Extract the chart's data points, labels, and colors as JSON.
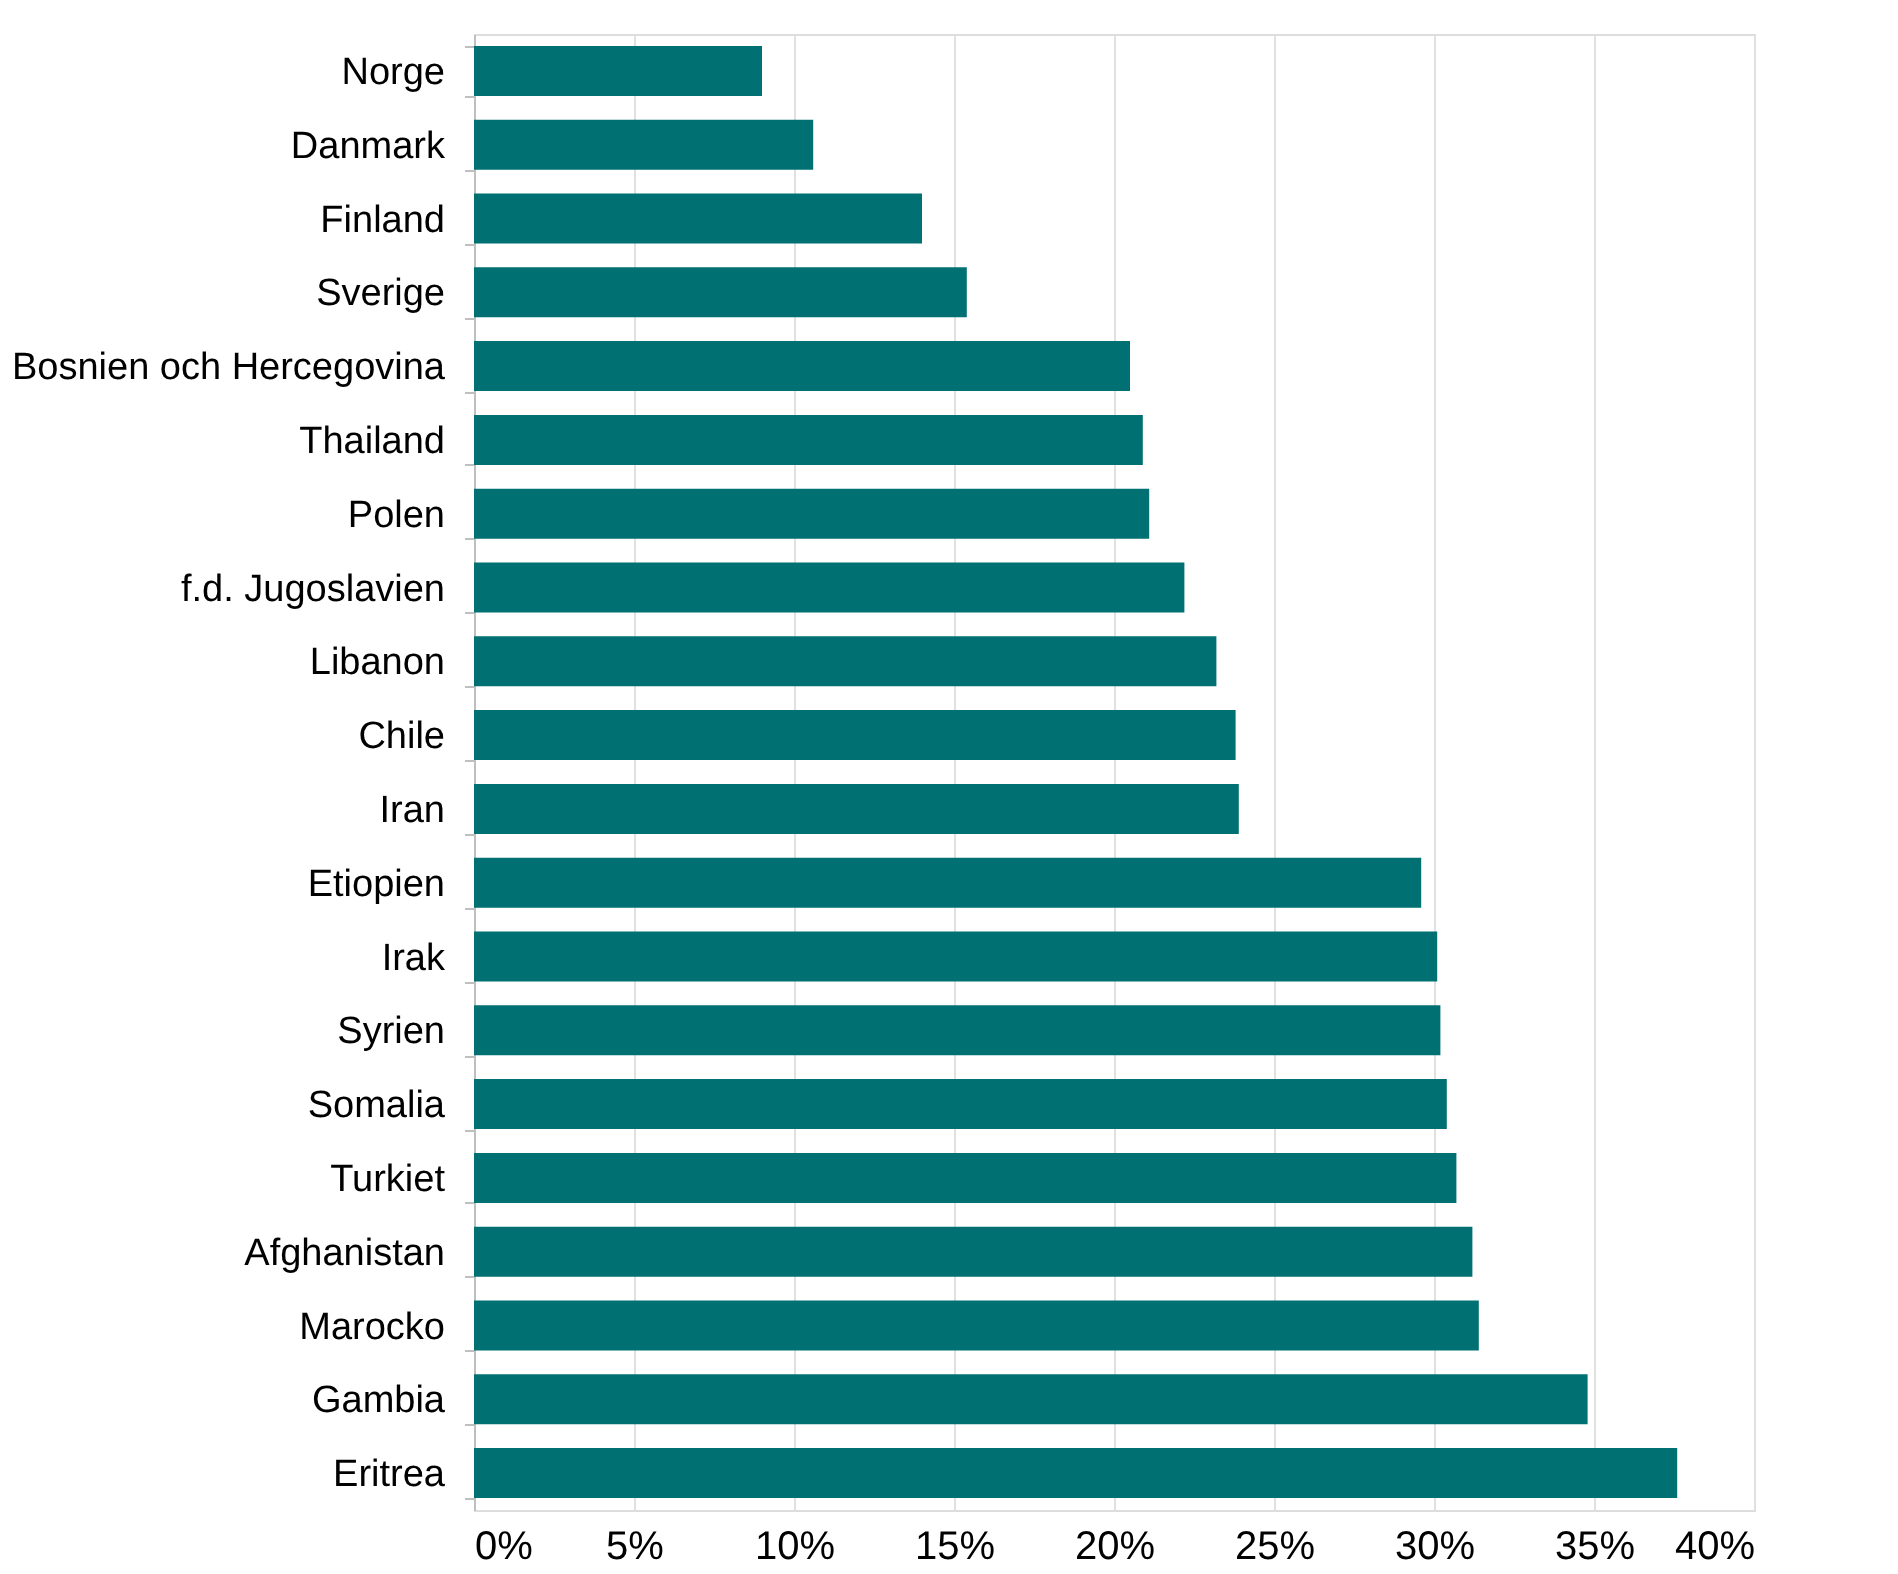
{
  "chart_data": {
    "type": "bar",
    "orientation": "horizontal",
    "categories": [
      "Norge",
      "Danmark",
      "Finland",
      "Sverige",
      "Bosnien och Hercegovina",
      "Thailand",
      "Polen",
      "f.d. Jugoslavien",
      "Libanon",
      "Chile",
      "Iran",
      "Etiopien",
      "Irak",
      "Syrien",
      "Somalia",
      "Turkiet",
      "Afghanistan",
      "Marocko",
      "Gambia",
      "Eritrea"
    ],
    "values": [
      9.0,
      10.6,
      14.0,
      15.4,
      20.5,
      20.9,
      21.1,
      22.2,
      23.2,
      23.8,
      23.9,
      29.6,
      30.1,
      30.2,
      30.4,
      30.7,
      31.2,
      31.4,
      34.8,
      37.6
    ],
    "color": "#007073",
    "xlim": [
      0,
      40
    ],
    "xticks": [
      {
        "value": 0,
        "label": "0%"
      },
      {
        "value": 5,
        "label": "5%"
      },
      {
        "value": 10,
        "label": "10%"
      },
      {
        "value": 15,
        "label": "15%"
      },
      {
        "value": 20,
        "label": "20%"
      },
      {
        "value": 25,
        "label": "25%"
      },
      {
        "value": 30,
        "label": "30%"
      },
      {
        "value": 35,
        "label": "35%"
      },
      {
        "value": 40,
        "label": "40%"
      }
    ],
    "grid": "x"
  }
}
